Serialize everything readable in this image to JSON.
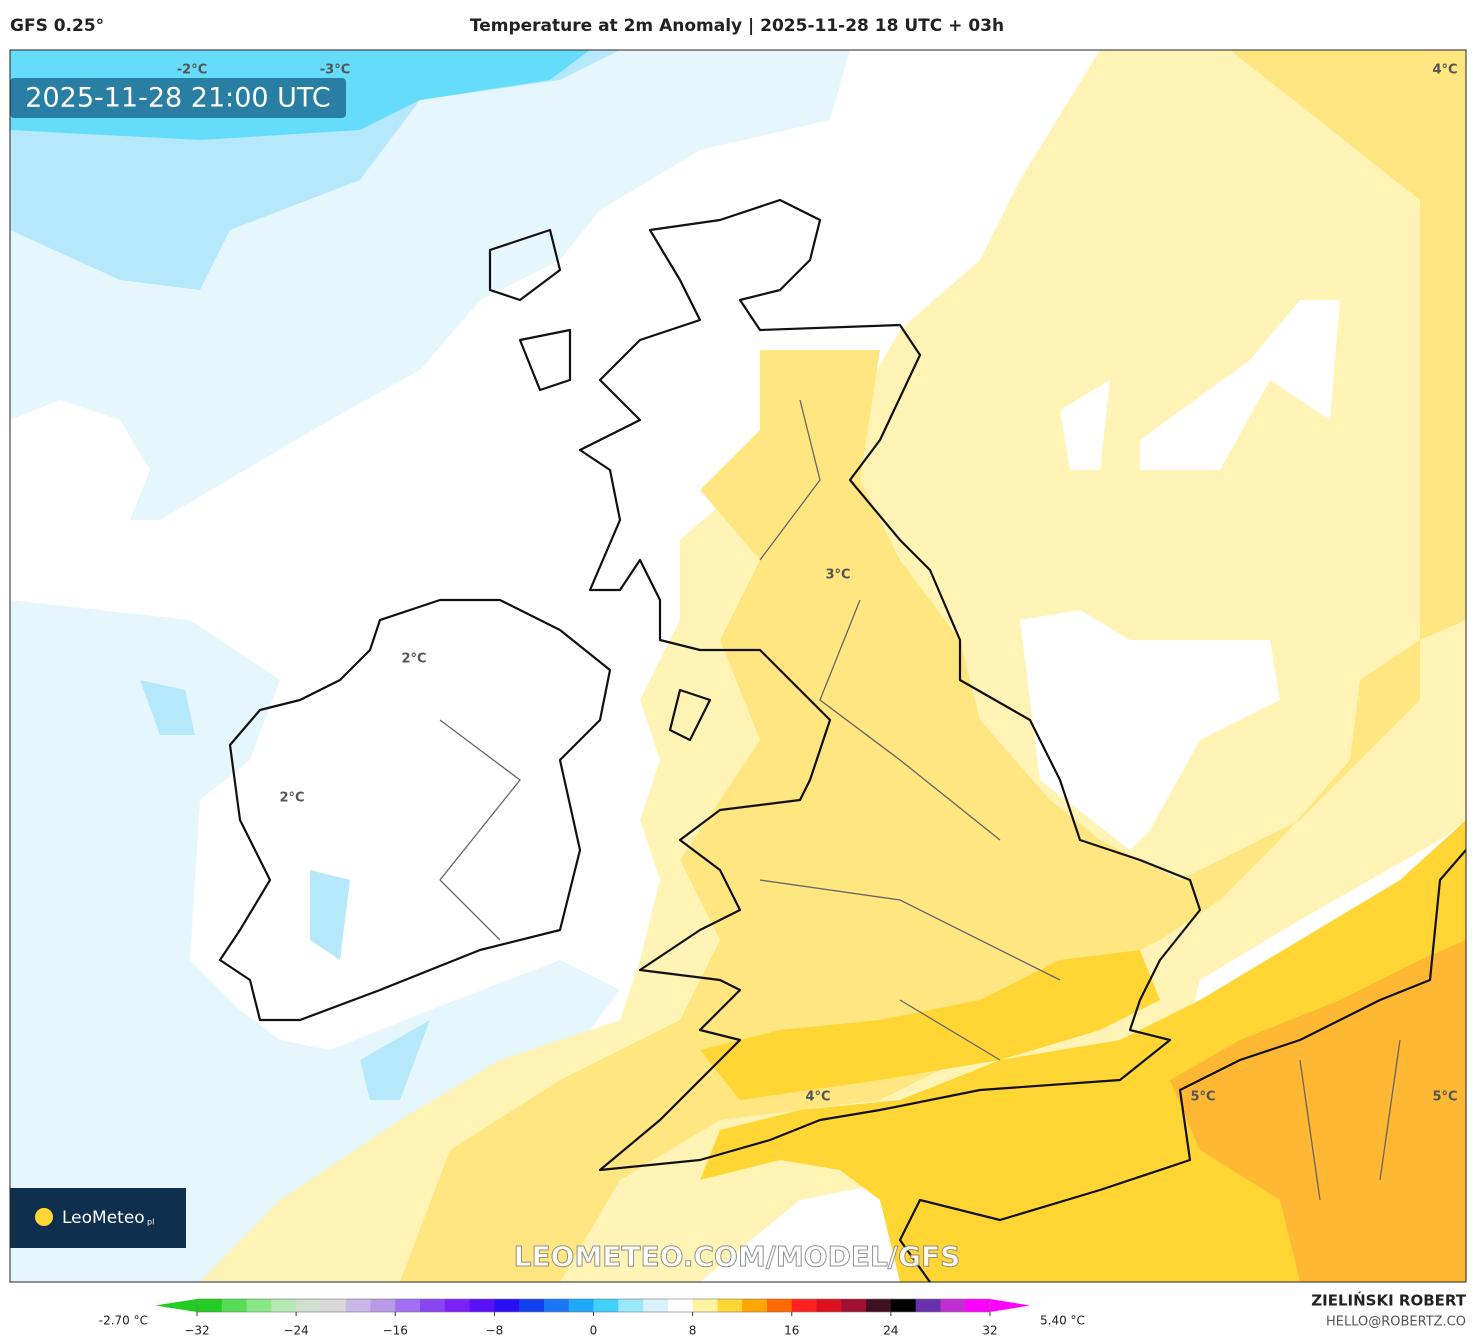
{
  "header": {
    "model": "GFS 0.25°",
    "title": "Temperature at 2m Anomaly | 2025-11-28 18 UTC + 03h",
    "valid_time": "2025-11-28 21:00 UTC"
  },
  "map": {
    "contour_labels": [
      "-2°C",
      "-3°C",
      "4°C",
      "3°C",
      "2°C",
      "2°C",
      "4°C",
      "5°C",
      "5°C"
    ],
    "watermark": "LEOMETEO.COM/MODEL/GFS",
    "logo": "LeoMeteo",
    "logo_suffix": "pl"
  },
  "colorbar": {
    "min_label": "-2.70 °C",
    "max_label": "5.40 °C",
    "range": [
      -32,
      32
    ],
    "ticks": [
      {
        "value": -32,
        "label": "−32"
      },
      {
        "value": -24,
        "label": "−24"
      },
      {
        "value": -16,
        "label": "−16"
      },
      {
        "value": -8,
        "label": "−8"
      },
      0,
      8,
      16,
      24,
      32
    ],
    "colors": [
      "#22cc22",
      "#55dd55",
      "#88e888",
      "#b5e8b5",
      "#cfe0cf",
      "#d8d8d8",
      "#c8b8e8",
      "#b89ae8",
      "#a070f0",
      "#8a44f0",
      "#7a22f8",
      "#5a10f8",
      "#2a10f8",
      "#1040f0",
      "#1a78f8",
      "#20a8fa",
      "#40d0fa",
      "#9ae6fb",
      "#d8f3fc",
      "#ffffff",
      "#fff3a0",
      "#ffd633",
      "#ffa500",
      "#ff6a00",
      "#ff2020",
      "#dd1020",
      "#a01030",
      "#401020",
      "#000000",
      "#6a30b0",
      "#c030d0",
      "#ff00ff"
    ]
  },
  "credits": {
    "author": "ZIELIŃSKI ROBERT",
    "contact": "HELLO@ROBERTZ.CO"
  }
}
